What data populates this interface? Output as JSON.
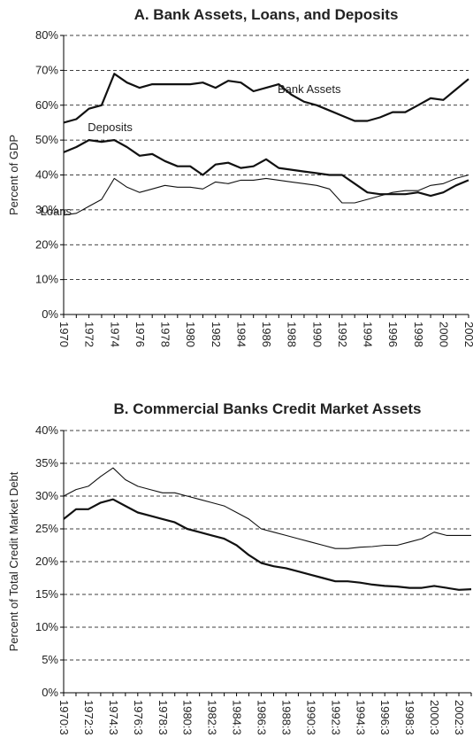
{
  "chart_data": [
    {
      "type": "line",
      "title": "A. Bank Assets, Loans, and Deposits",
      "y_label": "Percent of GDP",
      "categories": [
        "1970",
        null,
        "1972",
        null,
        "1974",
        null,
        "1976",
        null,
        "1978",
        null,
        "1980",
        null,
        "1982",
        null,
        "1984",
        null,
        "1986",
        null,
        "1988",
        null,
        "1990",
        null,
        "1992",
        null,
        "1994",
        null,
        "1996",
        null,
        "1998",
        null,
        "2000",
        null,
        "2002"
      ],
      "series": [
        {
          "name": "Bank Assets",
          "color": "#111111",
          "values": [
            55,
            56,
            59,
            60,
            69,
            66.5,
            65,
            66,
            66,
            66,
            66,
            66.5,
            65,
            67,
            66.5,
            64,
            65,
            66,
            63,
            61,
            60,
            58.5,
            57,
            55.5,
            55.5,
            56.5,
            58,
            58,
            60,
            62,
            61.5,
            64.5,
            67.5
          ]
        },
        {
          "name": "Deposits",
          "color": "#111111",
          "values": [
            46.5,
            48,
            50,
            49.5,
            50,
            48,
            45.5,
            46,
            44,
            42.5,
            42.5,
            40,
            43,
            43.5,
            42,
            42.5,
            44.5,
            42,
            41.5,
            41,
            40.5,
            40,
            40,
            37.5,
            35,
            34.5,
            34.5,
            34.5,
            35,
            34,
            35,
            37,
            38.5
          ]
        },
        {
          "name": "Loans",
          "color": "#111111",
          "values": [
            28.5,
            29,
            31,
            33,
            39,
            36.5,
            35,
            36,
            37,
            36.5,
            36.5,
            36,
            38,
            37.5,
            38.5,
            38.5,
            39,
            38.5,
            38,
            37.5,
            37,
            36,
            32,
            32,
            33,
            34,
            35,
            35.5,
            35.5,
            37,
            37.5,
            39,
            40
          ]
        }
      ],
      "ylim": [
        0,
        80
      ],
      "yticks": [
        {
          "value": 0,
          "label": "0%"
        },
        {
          "value": 10,
          "label": "10%"
        },
        {
          "value": 20,
          "label": "20%"
        },
        {
          "value": 30,
          "label": "30%"
        },
        {
          "value": 40,
          "label": "40%"
        },
        {
          "value": 50,
          "label": "50%"
        },
        {
          "value": 60,
          "label": "60%"
        },
        {
          "value": 70,
          "label": "70%"
        },
        {
          "value": 80,
          "label": "80%"
        }
      ],
      "grid": true
    },
    {
      "type": "line",
      "title": "B. Commercial Banks Credit Market Assets",
      "y_label": "Percent of Total Credit Market Debt",
      "categories": [
        "1970:3",
        null,
        "1972:3",
        null,
        "1974:3",
        null,
        "1976:3",
        null,
        "1978:3",
        null,
        "1980:3",
        null,
        "1982:3",
        null,
        "1984:3",
        null,
        "1986:3",
        null,
        "1988:3",
        null,
        "1990:3",
        null,
        "1992:3",
        null,
        "1994:3",
        null,
        "1996:3",
        null,
        "1998:3",
        null,
        "2000:3",
        null,
        "2002:3",
        null
      ],
      "series": [
        {
          "color": "#111111",
          "values": [
            30,
            31,
            31.5,
            33,
            34.3,
            32.5,
            31.5,
            31,
            30.5,
            30.5,
            30,
            29.5,
            29,
            28.5,
            27.5,
            26.5,
            25,
            24.5,
            24,
            23.5,
            23,
            22.5,
            22,
            22,
            22.2,
            22.3,
            22.5,
            22.5,
            23,
            23.5,
            24.5,
            24,
            24,
            24
          ]
        },
        {
          "color": "#111111",
          "values": [
            26.5,
            28,
            28,
            29,
            29.5,
            28.5,
            27.5,
            27,
            26.5,
            26,
            25,
            24.5,
            24,
            23.5,
            22.5,
            21,
            19.8,
            19.3,
            19,
            18.5,
            18,
            17.5,
            17,
            17,
            16.8,
            16.5,
            16.3,
            16.2,
            16,
            16,
            16.3,
            16,
            15.7,
            15.8
          ]
        }
      ],
      "ylim": [
        0,
        40
      ],
      "yticks": [
        {
          "value": 0,
          "label": "0%"
        },
        {
          "value": 5,
          "label": "5%"
        },
        {
          "value": 10,
          "label": "10%"
        },
        {
          "value": 15,
          "label": "15%"
        },
        {
          "value": 20,
          "label": "20%"
        },
        {
          "value": 25,
          "label": "25%"
        },
        {
          "value": 30,
          "label": "30%"
        },
        {
          "value": 35,
          "label": "35%"
        },
        {
          "value": 40,
          "label": "40%"
        }
      ],
      "grid": true
    }
  ]
}
